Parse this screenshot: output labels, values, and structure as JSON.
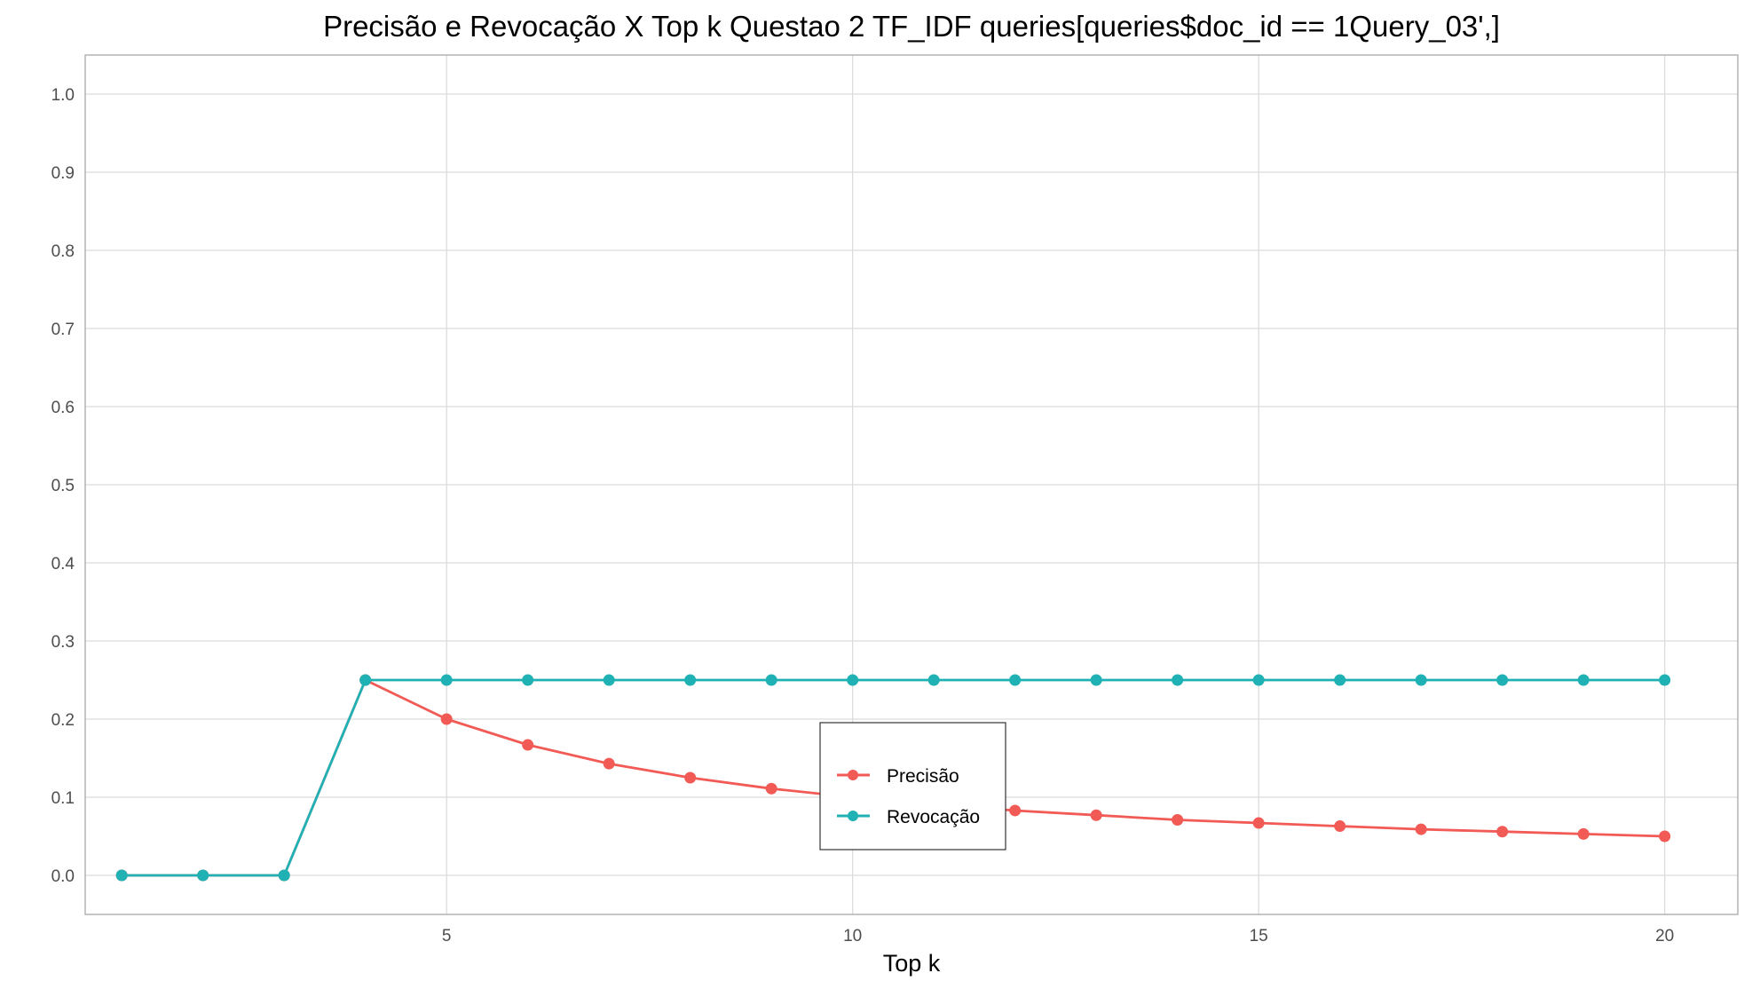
{
  "chart_data": {
    "type": "line",
    "title": "Precisão e Revocação X Top k Questao 2 TF_IDF queries[queries$doc_id == 1Query_03',]",
    "xlabel": "Top k",
    "ylabel": "",
    "x": [
      1,
      2,
      3,
      4,
      5,
      6,
      7,
      8,
      9,
      10,
      11,
      12,
      13,
      14,
      15,
      16,
      17,
      18,
      19,
      20
    ],
    "series": [
      {
        "name": "Precisão",
        "color": "#F15A55",
        "values": [
          0,
          0,
          0,
          0.25,
          0.2,
          0.167,
          0.143,
          0.125,
          0.111,
          0.1,
          0.091,
          0.083,
          0.077,
          0.071,
          0.067,
          0.063,
          0.059,
          0.056,
          0.053,
          0.05
        ]
      },
      {
        "name": "Revocação",
        "color": "#1FB1B3",
        "values": [
          0,
          0,
          0,
          0.25,
          0.25,
          0.25,
          0.25,
          0.25,
          0.25,
          0.25,
          0.25,
          0.25,
          0.25,
          0.25,
          0.25,
          0.25,
          0.25,
          0.25,
          0.25,
          0.25
        ]
      }
    ],
    "xticks": [
      5,
      10,
      15,
      20
    ],
    "xtick_labels": [
      "5",
      "10",
      "15",
      "20"
    ],
    "yticks": [
      0,
      0.1,
      0.2,
      0.3,
      0.4,
      0.5,
      0.6,
      0.7,
      0.8,
      0.9,
      1
    ],
    "ytick_labels": [
      "0.0",
      "0.1",
      "0.2",
      "0.3",
      "0.4",
      "0.5",
      "0.6",
      "0.7",
      "0.8",
      "0.9",
      "1.0"
    ],
    "xlim": [
      0.55,
      20.9
    ],
    "ylim": [
      -0.05,
      1.05
    ],
    "grid": true,
    "legend_position": "center-inside"
  }
}
